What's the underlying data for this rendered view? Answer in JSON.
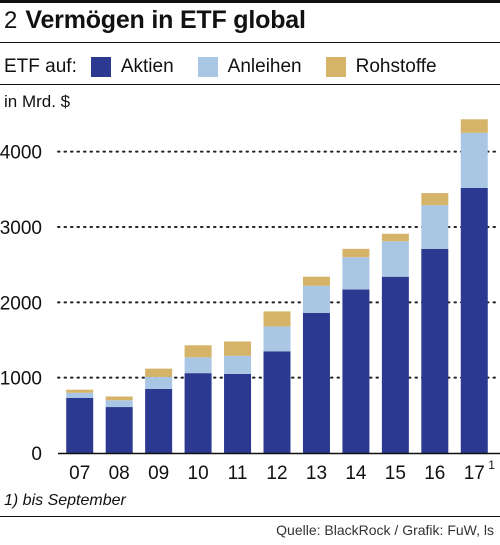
{
  "header": {
    "number": "2",
    "title": "Vermögen in ETF global"
  },
  "legend": {
    "prefix": "ETF auf:",
    "items": [
      {
        "label": "Aktien",
        "color": "#2b3990"
      },
      {
        "label": "Anleihen",
        "color": "#a9c6e5"
      },
      {
        "label": "Rohstoffe",
        "color": "#d5b368"
      }
    ]
  },
  "unit_label": "in Mrd. $",
  "footnote": "1) bis September",
  "source": "Quelle: BlackRock / Grafik: FuW, ls",
  "chart_data": {
    "type": "bar",
    "stacked": true,
    "categories": [
      "07",
      "08",
      "09",
      "10",
      "11",
      "12",
      "13",
      "14",
      "15",
      "16",
      "17"
    ],
    "category_superscripts": [
      "",
      "",
      "",
      "",
      "",
      "",
      "",
      "",
      "",
      "",
      "1"
    ],
    "series": [
      {
        "name": "Aktien",
        "color": "#2b3990",
        "values": [
          730,
          610,
          850,
          1060,
          1050,
          1350,
          1860,
          2170,
          2340,
          2710,
          3520
        ]
      },
      {
        "name": "Anleihen",
        "color": "#a9c6e5",
        "values": [
          70,
          90,
          160,
          210,
          240,
          330,
          360,
          430,
          470,
          580,
          730
        ]
      },
      {
        "name": "Rohstoffe",
        "color": "#d5b368",
        "values": [
          40,
          50,
          110,
          160,
          190,
          200,
          120,
          110,
          100,
          160,
          180
        ]
      }
    ],
    "yticks": [
      0,
      1000,
      2000,
      3000,
      4000
    ],
    "ylim": [
      0,
      4500
    ],
    "grid": "dotted"
  }
}
